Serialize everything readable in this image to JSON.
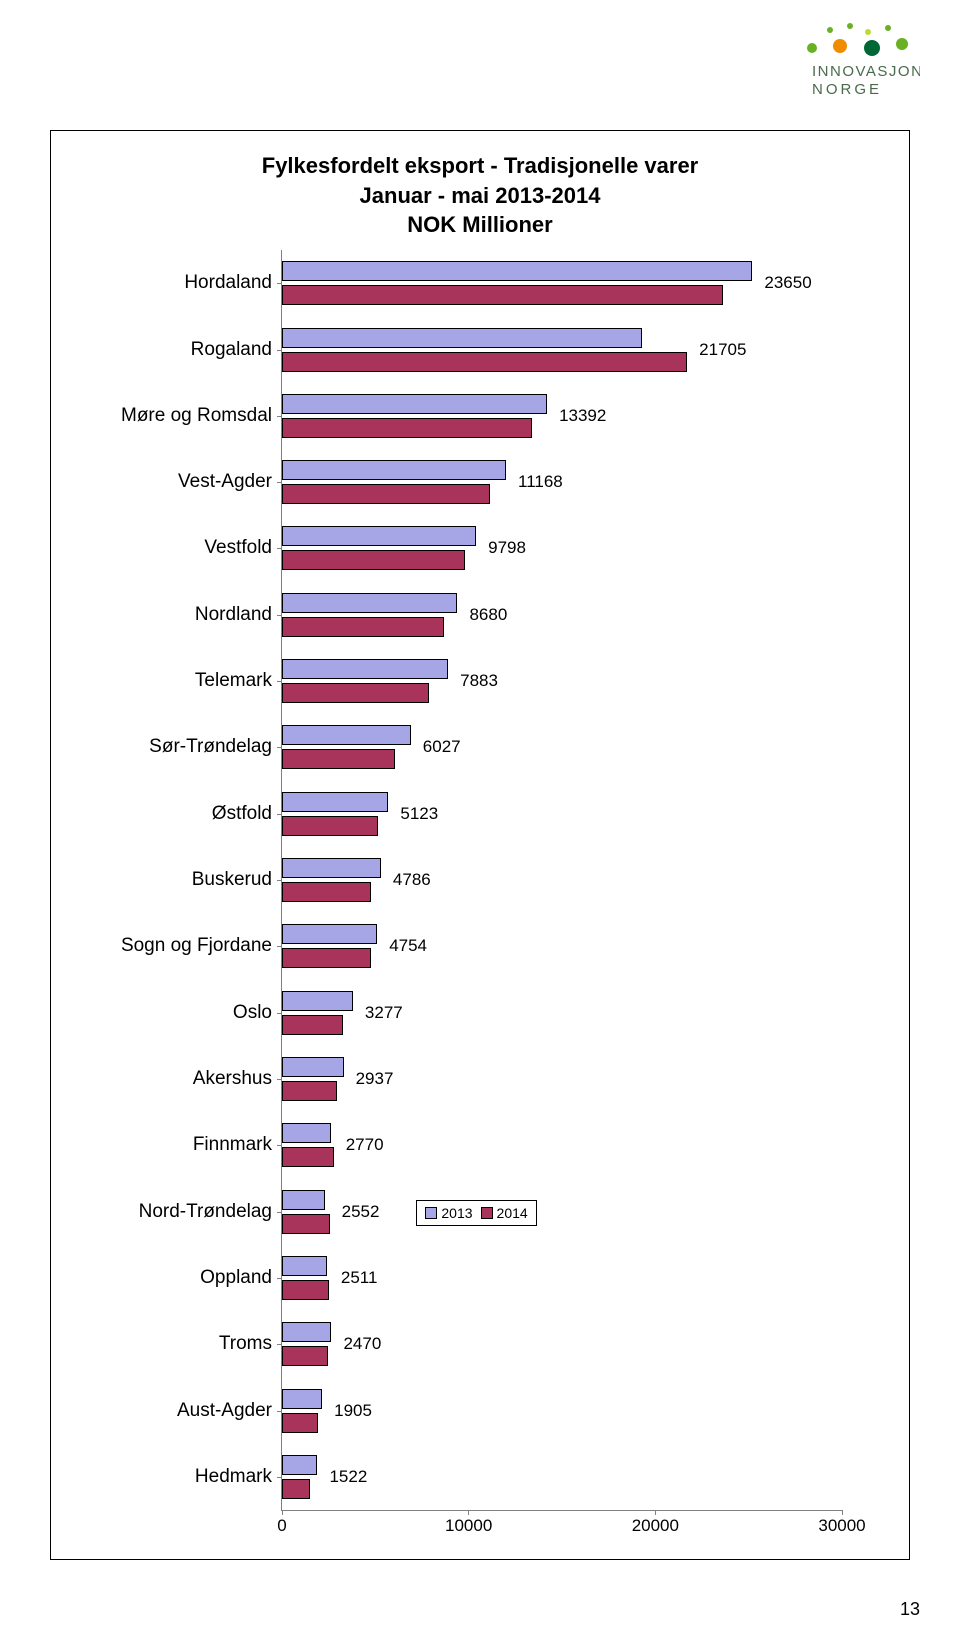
{
  "page_number": "13",
  "logo": {
    "text_top": "INNOVASJON",
    "text_bottom": "NORGE",
    "text_color": "#4a6a4a",
    "dot_colors": [
      "#6ab023",
      "#c2d832",
      "#6ab023",
      "#f08c00",
      "#6ab023",
      "#006837",
      "#6ab023"
    ]
  },
  "chart": {
    "type": "bar",
    "orientation": "horizontal",
    "grouped": true,
    "title_line1": "Fylkesfordelt eksport - Tradisjonelle varer",
    "title_line2": "Januar - mai 2013-2014",
    "title_line3": "NOK Millioner",
    "title_fontsize": 22,
    "label_fontsize": 19,
    "value_fontsize": 17,
    "tick_fontsize": 17,
    "background_color": "#ffffff",
    "border_color": "#000000",
    "axis_color": "#808080",
    "series": [
      {
        "name": "2013",
        "color": "#a6a6e6"
      },
      {
        "name": "2014",
        "color": "#a8335b"
      }
    ],
    "bar_border": "#000000",
    "categories": [
      "Hordaland",
      "Rogaland",
      "Møre og Romsdal",
      "Vest-Agder",
      "Vestfold",
      "Nordland",
      "Telemark",
      "Sør-Trøndelag",
      "Østfold",
      "Buskerud",
      "Sogn og Fjordane",
      "Oslo",
      "Akershus",
      "Finnmark",
      "Nord-Trøndelag",
      "Oppland",
      "Troms",
      "Aust-Agder",
      "Hedmark"
    ],
    "values_2013": [
      25200,
      19300,
      14200,
      12000,
      10400,
      9400,
      8900,
      6900,
      5700,
      5300,
      5100,
      3800,
      3300,
      2600,
      2300,
      2400,
      2650,
      2150,
      1900
    ],
    "values_2014": [
      23650,
      21705,
      13392,
      11168,
      9798,
      8680,
      7883,
      6027,
      5123,
      4786,
      4754,
      3277,
      2937,
      2770,
      2552,
      2511,
      2470,
      1905,
      1522
    ],
    "display_labels": [
      "23650",
      "21705",
      "13392",
      "11168",
      "9798",
      "8680",
      "7883",
      "6027",
      "5123",
      "4786",
      "4754",
      "3277",
      "2937",
      "2770",
      "2552",
      "2511",
      "2470",
      "1905",
      "1522"
    ],
    "xlim": [
      0,
      30000
    ],
    "xtick_step": 10000,
    "xticks": [
      "0",
      "10000",
      "20000",
      "30000"
    ],
    "legend": {
      "items": [
        "2013",
        "2014"
      ],
      "row_index": 14,
      "x_value": 7200
    }
  }
}
